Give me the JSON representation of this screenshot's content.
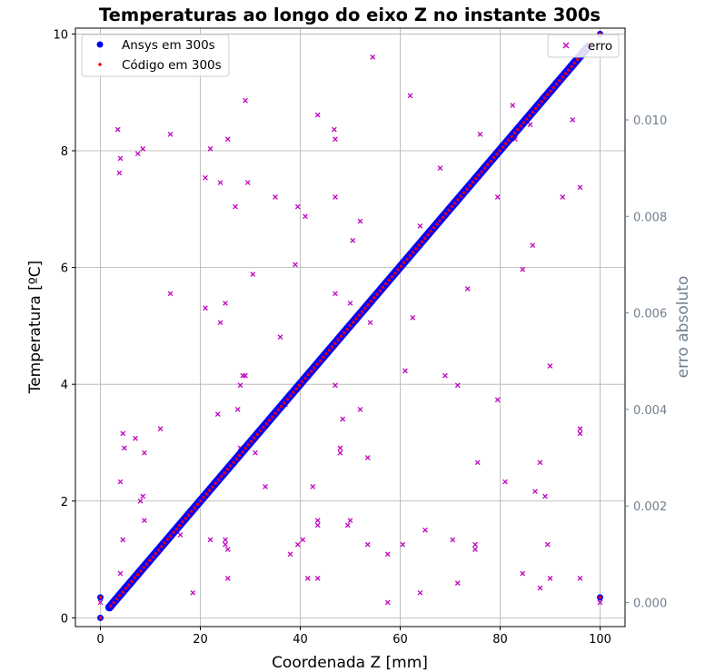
{
  "chart_data": {
    "type": "scatter",
    "title": "Temperaturas ao longo do eixo Z no instante 300s",
    "xlabel": "Coordenada Z [mm]",
    "ylabel": "Temperatura [ºC]",
    "y2label": "erro absoluto",
    "xlim": [
      -5,
      105
    ],
    "ylim": [
      -0.15,
      10.1
    ],
    "y2lim": [
      -0.0005,
      0.0119
    ],
    "xticks": [
      "0",
      "20",
      "40",
      "60",
      "80",
      "100"
    ],
    "yticks": [
      "0",
      "2",
      "4",
      "6",
      "8",
      "10"
    ],
    "y2ticks": [
      "0.000",
      "0.002",
      "0.004",
      "0.006",
      "0.008",
      "0.010"
    ],
    "grid": true,
    "legend_left": [
      {
        "name": "Ansys em 300s",
        "color": "#0000ff",
        "marker": "circle"
      },
      {
        "name": "Código em 300s",
        "color": "#ff0000",
        "marker": "point"
      }
    ],
    "legend_right": [
      {
        "name": "erro",
        "color": "#bf00bf",
        "marker": "x"
      }
    ],
    "series_line": {
      "x_start": 0,
      "x_end": 100,
      "y_start": 0,
      "y_end": 10,
      "extra_points": [
        [
          0,
          0
        ],
        [
          100,
          10
        ],
        [
          0,
          0.35
        ],
        [
          100,
          0.35
        ]
      ]
    },
    "erro_points": [
      [
        0.0,
        0.0
      ],
      [
        100.0,
        0.0
      ],
      [
        3.5,
        0.0098
      ],
      [
        4.0,
        0.0092
      ],
      [
        3.8,
        0.0089
      ],
      [
        7.5,
        0.0093
      ],
      [
        8.5,
        0.0094
      ],
      [
        14.0,
        0.0097
      ],
      [
        22.0,
        0.0094
      ],
      [
        25.5,
        0.0096
      ],
      [
        21.0,
        0.0088
      ],
      [
        24.0,
        0.0087
      ],
      [
        29.0,
        0.0104
      ],
      [
        29.5,
        0.0087
      ],
      [
        27.0,
        0.0082
      ],
      [
        35.0,
        0.0084
      ],
      [
        39.5,
        0.0082
      ],
      [
        41.0,
        0.008
      ],
      [
        43.5,
        0.0101
      ],
      [
        46.8,
        0.0098
      ],
      [
        47.0,
        0.0096
      ],
      [
        47.0,
        0.0084
      ],
      [
        52.0,
        0.0079
      ],
      [
        50.5,
        0.0075
      ],
      [
        54.5,
        0.0113
      ],
      [
        62.0,
        0.0105
      ],
      [
        64.0,
        0.0078
      ],
      [
        68.0,
        0.009
      ],
      [
        76.0,
        0.0097
      ],
      [
        79.5,
        0.0084
      ],
      [
        82.5,
        0.0103
      ],
      [
        83.0,
        0.0096
      ],
      [
        86.0,
        0.0099
      ],
      [
        94.5,
        0.01
      ],
      [
        96.0,
        0.0086
      ],
      [
        92.5,
        0.0084
      ],
      [
        86.5,
        0.0074
      ],
      [
        84.5,
        0.0069
      ],
      [
        30.5,
        0.0068
      ],
      [
        39.0,
        0.007
      ],
      [
        14.0,
        0.0064
      ],
      [
        21.0,
        0.0061
      ],
      [
        25.0,
        0.0062
      ],
      [
        24.0,
        0.0058
      ],
      [
        36.0,
        0.0055
      ],
      [
        47.0,
        0.0064
      ],
      [
        50.0,
        0.0062
      ],
      [
        54.0,
        0.0058
      ],
      [
        62.5,
        0.0059
      ],
      [
        73.5,
        0.0065
      ],
      [
        28.5,
        0.0047
      ],
      [
        28.0,
        0.0045
      ],
      [
        29.0,
        0.0047
      ],
      [
        37.0,
        0.0041
      ],
      [
        47.0,
        0.0045
      ],
      [
        52.0,
        0.004
      ],
      [
        48.5,
        0.0038
      ],
      [
        23.5,
        0.0039
      ],
      [
        27.5,
        0.004
      ],
      [
        61.0,
        0.0048
      ],
      [
        69.0,
        0.0047
      ],
      [
        71.5,
        0.0045
      ],
      [
        79.5,
        0.0042
      ],
      [
        90.0,
        0.0049
      ],
      [
        12.0,
        0.0036
      ],
      [
        4.5,
        0.0035
      ],
      [
        7.0,
        0.0034
      ],
      [
        4.8,
        0.0032
      ],
      [
        8.8,
        0.0031
      ],
      [
        28.0,
        0.0032
      ],
      [
        31.0,
        0.0031
      ],
      [
        48.0,
        0.0032
      ],
      [
        48.0,
        0.0031
      ],
      [
        53.5,
        0.003
      ],
      [
        4.0,
        0.0025
      ],
      [
        8.0,
        0.0021
      ],
      [
        8.5,
        0.0022
      ],
      [
        8.8,
        0.0017
      ],
      [
        33.0,
        0.0024
      ],
      [
        42.5,
        0.0024
      ],
      [
        75.5,
        0.0029
      ],
      [
        81.0,
        0.0025
      ],
      [
        87.0,
        0.0023
      ],
      [
        88.0,
        0.0029
      ],
      [
        89.0,
        0.0022
      ],
      [
        96.0,
        0.0036
      ],
      [
        96.0,
        0.0035
      ],
      [
        4.5,
        0.0013
      ],
      [
        16.0,
        0.0014
      ],
      [
        22.0,
        0.0013
      ],
      [
        25.0,
        0.0013
      ],
      [
        25.0,
        0.0012
      ],
      [
        25.5,
        0.0011
      ],
      [
        38.0,
        0.001
      ],
      [
        39.5,
        0.0012
      ],
      [
        40.5,
        0.0013
      ],
      [
        43.5,
        0.0016
      ],
      [
        43.5,
        0.0017
      ],
      [
        49.5,
        0.0016
      ],
      [
        50.0,
        0.0017
      ],
      [
        53.5,
        0.0012
      ],
      [
        57.5,
        0.001
      ],
      [
        60.5,
        0.0012
      ],
      [
        65.0,
        0.0015
      ],
      [
        70.5,
        0.0013
      ],
      [
        75.0,
        0.0012
      ],
      [
        75.0,
        0.0011
      ],
      [
        89.5,
        0.0012
      ],
      [
        4.0,
        0.0006
      ],
      [
        18.5,
        0.0002
      ],
      [
        25.5,
        0.0005
      ],
      [
        41.5,
        0.0005
      ],
      [
        43.5,
        0.0005
      ],
      [
        57.5,
        0.0
      ],
      [
        64.0,
        0.0002
      ],
      [
        71.5,
        0.0004
      ],
      [
        84.5,
        0.0006
      ],
      [
        88.0,
        0.0003
      ],
      [
        90.0,
        0.0005
      ],
      [
        96.0,
        0.0005
      ]
    ]
  }
}
